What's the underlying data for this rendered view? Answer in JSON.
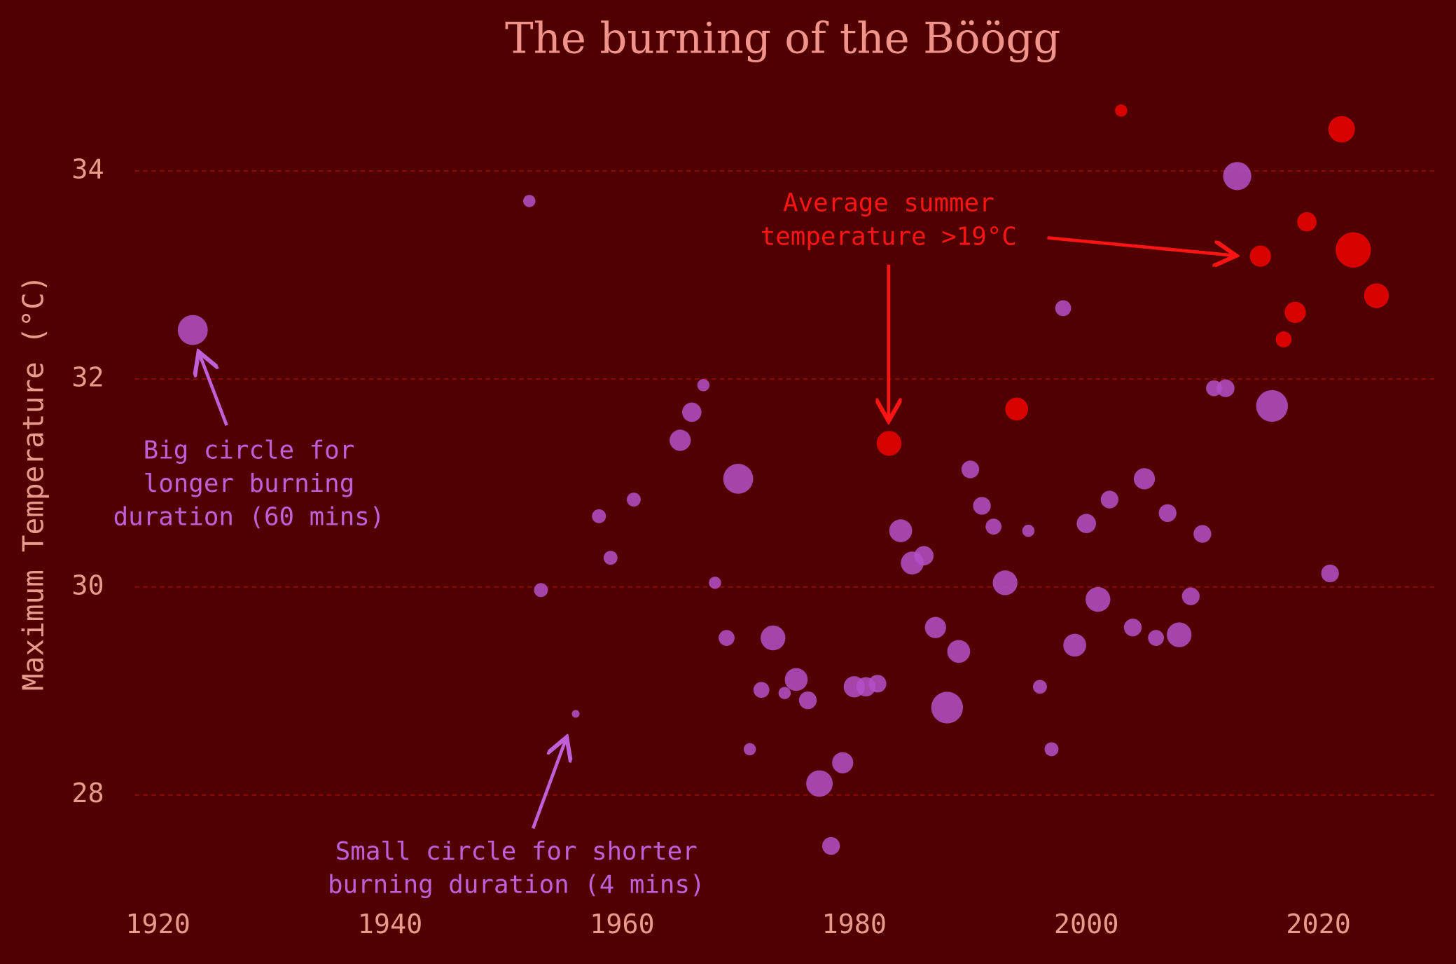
{
  "chart_data": {
    "type": "scatter",
    "title": "The burning of the Böögg",
    "ylabel": "Maximum Temperature (°C)",
    "xlim": [
      1918,
      2030
    ],
    "ylim": [
      27.2,
      35
    ],
    "xticks": [
      1920,
      1940,
      1960,
      1980,
      2000,
      2020
    ],
    "yticks": [
      28,
      30,
      32,
      34
    ],
    "grid": true,
    "series": [
      {
        "color": "#b450c8",
        "x": [
          1923,
          1952,
          1953,
          1956,
          1958,
          1959,
          1961,
          1965,
          1966,
          1967,
          1968,
          1969,
          1970,
          1971,
          1972,
          1973,
          1974,
          1975,
          1976,
          1977,
          1978,
          1979,
          1980,
          1981,
          1982,
          1984,
          1985,
          1986,
          1987,
          1988,
          1989,
          1990,
          1991,
          1992,
          1993,
          1995,
          1996,
          1997,
          1998,
          1999,
          2000,
          2001,
          2002,
          2004,
          2005,
          2006,
          2007,
          2008,
          2009,
          2010,
          2011,
          2012,
          2013,
          2016,
          2021
        ],
        "values": [
          32.47,
          33.71,
          29.97,
          28.78,
          30.68,
          30.28,
          30.84,
          31.41,
          31.68,
          31.94,
          30.04,
          29.51,
          31.04,
          28.44,
          29.01,
          29.51,
          28.98,
          29.11,
          28.91,
          28.11,
          27.51,
          28.31,
          29.04,
          29.04,
          29.07,
          30.54,
          30.23,
          30.3,
          29.61,
          28.84,
          29.38,
          31.13,
          30.78,
          30.58,
          30.04,
          30.54,
          29.04,
          28.44,
          32.68,
          29.44,
          30.61,
          29.88,
          30.84,
          29.61,
          31.04,
          29.51,
          30.71,
          29.54,
          29.91,
          30.51,
          31.91,
          31.91,
          33.95,
          31.74,
          30.13
        ],
        "sizes": [
          60,
          10,
          13,
          4,
          13,
          13,
          13,
          30,
          25,
          10,
          10,
          17,
          60,
          10,
          17,
          41,
          10,
          35,
          21,
          47,
          21,
          30,
          30,
          25,
          21,
          35,
          35,
          25,
          30,
          67,
          35,
          21,
          21,
          17,
          41,
          10,
          13,
          13,
          17,
          35,
          25,
          41,
          21,
          21,
          30,
          17,
          21,
          41,
          21,
          21,
          17,
          21,
          53,
          67,
          21
        ]
      },
      {
        "color": "#e00000",
        "x": [
          1983,
          1994,
          2003,
          2015,
          2017,
          2018,
          2019,
          2022,
          2023,
          2025
        ],
        "values": [
          31.38,
          31.71,
          34.58,
          33.18,
          32.38,
          32.64,
          33.51,
          34.4,
          33.24,
          32.8
        ],
        "sizes": [
          41,
          35,
          10,
          30,
          17,
          30,
          25,
          47,
          83,
          41
        ]
      }
    ],
    "annotations": [
      {
        "color": "#c060d8",
        "lines": [
          "Big circle for",
          "longer burning",
          "duration (60 mins)"
        ]
      },
      {
        "color": "#c060d8",
        "lines": [
          "Small circle for shorter",
          "burning duration (4 mins)"
        ]
      },
      {
        "color": "#ff1414",
        "lines": [
          "Average summer",
          "temperature >19°C"
        ]
      }
    ]
  }
}
